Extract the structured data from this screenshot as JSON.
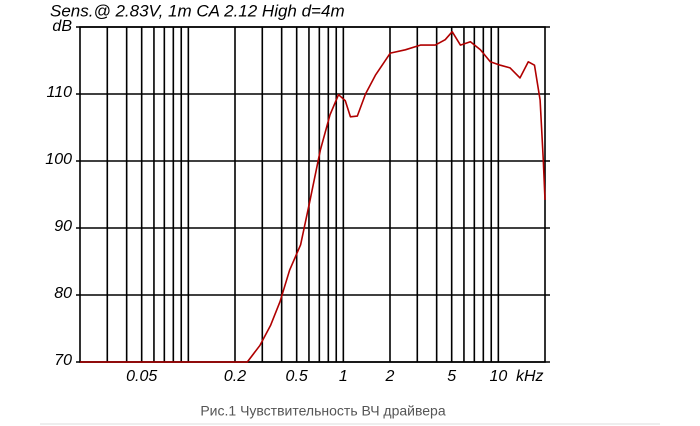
{
  "chart_data": {
    "type": "line",
    "title": "Sens.@ 2.83V, 1m CA 2.12 High  d=4m",
    "caption": "Рис.1 Чувствительность ВЧ драйвера",
    "xlabel": "kHz",
    "xscale": "log",
    "xlim": [
      0.02,
      20
    ],
    "ylim": [
      70,
      120
    ],
    "xticks": [
      0.05,
      0.2,
      0.5,
      1,
      2,
      5,
      10
    ],
    "xminor": [
      0.03,
      0.04,
      0.06,
      0.07,
      0.08,
      0.09,
      0.1,
      0.3,
      0.4,
      0.6,
      0.7,
      0.8,
      0.9,
      3,
      4,
      6,
      7,
      8,
      9
    ],
    "yticks": [
      70,
      80,
      90,
      100,
      110,
      {
        "value": 120,
        "label": "dB"
      }
    ],
    "grid": true,
    "color": "#b00000",
    "x": [
      0.02,
      0.1,
      0.24,
      0.29,
      0.34,
      0.39,
      0.45,
      0.53,
      0.61,
      0.71,
      0.82,
      0.93,
      1.03,
      1.11,
      1.23,
      1.39,
      1.61,
      2.01,
      2.51,
      3.14,
      3.92,
      4.54,
      5.04,
      5.69,
      6.6,
      7.66,
      8.88,
      10.3,
      11.9,
      13.8,
      15.6,
      17.1,
      18.6,
      19.5,
      20
    ],
    "values": [
      70,
      70,
      70,
      72.5,
      75.5,
      79,
      83.7,
      87.5,
      94.2,
      101.6,
      106.9,
      109.9,
      109,
      106.6,
      106.7,
      110,
      112.8,
      116.1,
      116.6,
      117.3,
      117.3,
      118.1,
      119.3,
      117.3,
      117.8,
      116.6,
      114.8,
      114.3,
      113.9,
      112.4,
      114.8,
      114.3,
      109.1,
      100.1,
      94.2
    ]
  }
}
